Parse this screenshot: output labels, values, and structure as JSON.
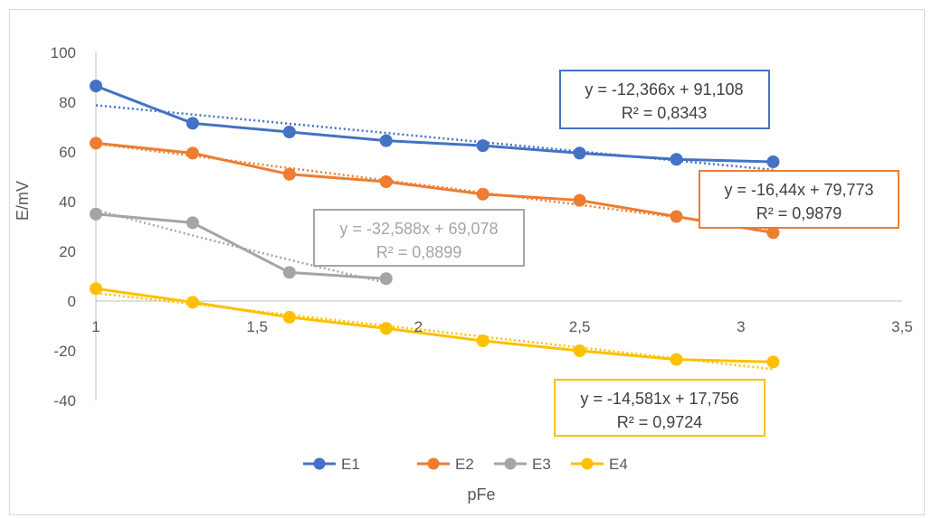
{
  "chart_data": {
    "type": "line",
    "title": "",
    "xlabel": "pFe",
    "ylabel": "E/mV",
    "xlim": [
      1,
      3.5
    ],
    "ylim": [
      -40,
      100
    ],
    "x_ticks": [
      "1",
      "1,5",
      "2",
      "2,5",
      "3",
      "3,5"
    ],
    "y_ticks": [
      "100",
      "80",
      "60",
      "40",
      "20",
      "0",
      "-20",
      "-40"
    ],
    "legend_position": "bottom",
    "grid": false,
    "series": [
      {
        "name": "E1",
        "color": "#4472c4",
        "x": [
          1.0,
          1.3,
          1.6,
          1.9,
          2.2,
          2.5,
          2.8,
          3.1
        ],
        "y": [
          86.5,
          71.5,
          68.0,
          64.5,
          62.5,
          59.5,
          57.0,
          56.0
        ],
        "trend": {
          "slope": -12.366,
          "intercept": 91.108,
          "equation": "y = -12,366x + 91,108",
          "r2": "R² = 0,8343"
        }
      },
      {
        "name": "E2",
        "color": "#ed7d31",
        "x": [
          1.0,
          1.3,
          1.6,
          1.9,
          2.2,
          2.5,
          2.8,
          3.1
        ],
        "y": [
          63.5,
          59.5,
          51.0,
          48.0,
          43.0,
          40.5,
          34.0,
          27.5
        ],
        "trend": {
          "slope": -16.44,
          "intercept": 79.773,
          "equation": "y = -16,44x + 79,773",
          "r2": "R² = 0,9879"
        }
      },
      {
        "name": "E3",
        "color": "#a5a5a5",
        "x": [
          1.0,
          1.3,
          1.6,
          1.9
        ],
        "y": [
          35.0,
          31.5,
          11.5,
          9.0
        ],
        "trend": {
          "equation": "y = -32,588x + 69,078",
          "r2": "R² = 0,8899"
        }
      },
      {
        "name": "E4",
        "color": "#ffc000",
        "x": [
          1.0,
          1.3,
          1.6,
          1.9,
          2.2,
          2.5,
          2.8,
          3.1
        ],
        "y": [
          5.0,
          -0.5,
          -6.5,
          -11.0,
          -16.0,
          -20.0,
          -23.5,
          -24.5
        ],
        "trend": {
          "slope": -14.581,
          "intercept": 17.756,
          "equation": "y = -14,581x + 17,756",
          "r2": "R² = 0,9724"
        }
      }
    ]
  }
}
